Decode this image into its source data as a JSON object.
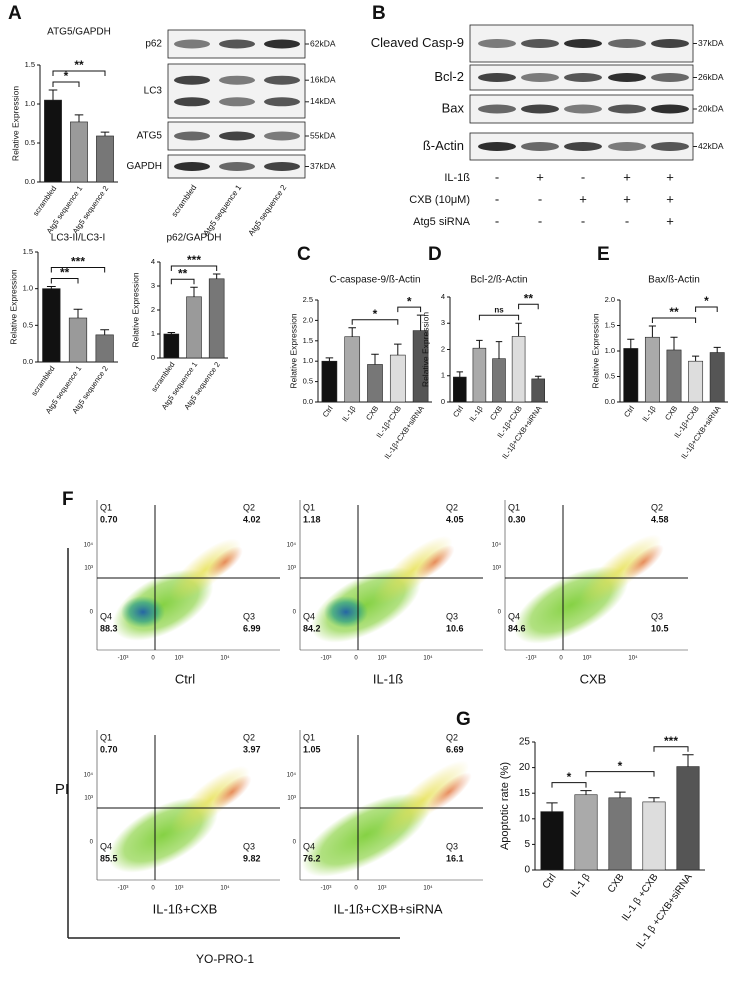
{
  "panel_letters": [
    "A",
    "B",
    "C",
    "D",
    "E",
    "F",
    "G"
  ],
  "chart_data": [
    {
      "type": "bar",
      "title": "ATG5/GAPDH",
      "ylabel": "Relative Expression",
      "categories": [
        "scrambled",
        "Atg5 sequence 1",
        "Atg5 sequence 2"
      ],
      "values": [
        1.05,
        0.77,
        0.59
      ],
      "errors": [
        0.13,
        0.09,
        0.05
      ],
      "colors": [
        "#111111",
        "#9a9a9a",
        "#777777"
      ],
      "ylim": [
        0,
        1.5
      ],
      "yticks": [
        {
          "value": 0,
          "label": "0.0"
        },
        {
          "value": 0.5,
          "label": "0.5"
        },
        {
          "value": 1,
          "label": "1.0"
        },
        {
          "value": 1.5,
          "label": "1.5"
        }
      ],
      "brackets": [
        {
          "from": 0,
          "to": 1,
          "label": "*"
        },
        {
          "from": 0,
          "to": 2,
          "label": "**"
        }
      ]
    },
    {
      "type": "bar",
      "title": "LC3-II/LC3-I",
      "ylabel": "Relative Expression",
      "categories": [
        "scrambled",
        "Atg5 sequence 1",
        "Atg5 sequence 2"
      ],
      "values": [
        1.0,
        0.6,
        0.37
      ],
      "errors": [
        0.03,
        0.12,
        0.07
      ],
      "colors": [
        "#111111",
        "#9a9a9a",
        "#777777"
      ],
      "ylim": [
        0,
        1.5
      ],
      "yticks": [
        {
          "value": 0,
          "label": "0.0"
        },
        {
          "value": 0.5,
          "label": "0.5"
        },
        {
          "value": 1,
          "label": "1.0"
        },
        {
          "value": 1.5,
          "label": "1.5"
        }
      ],
      "brackets": [
        {
          "from": 0,
          "to": 1,
          "label": "**"
        },
        {
          "from": 0,
          "to": 2,
          "label": "***"
        }
      ]
    },
    {
      "type": "bar",
      "title": "p62/GAPDH",
      "ylabel": "Relative Expression",
      "categories": [
        "scrambled",
        "Atg5 sequence 1",
        "Atg5 sequence 2"
      ],
      "values": [
        1.0,
        2.55,
        3.3
      ],
      "errors": [
        0.06,
        0.4,
        0.2
      ],
      "colors": [
        "#111111",
        "#9a9a9a",
        "#777777"
      ],
      "ylim": [
        0,
        4
      ],
      "yticks": [
        0,
        1,
        2,
        3,
        4
      ],
      "brackets": [
        {
          "from": 0,
          "to": 1,
          "label": "**"
        },
        {
          "from": 0,
          "to": 2,
          "label": "***"
        }
      ]
    },
    {
      "type": "bar",
      "title": "C-caspase-9/ß-Actin",
      "ylabel": "Relative Expression",
      "categories": [
        "Ctrl",
        "IL-1β",
        "CXB",
        "IL-1β+CXB",
        "IL-1β+CXB+siRNA"
      ],
      "values": [
        1.0,
        1.6,
        0.92,
        1.15,
        1.75
      ],
      "errors": [
        0.08,
        0.22,
        0.25,
        0.27,
        0.38
      ],
      "colors": [
        "#111111",
        "#aaaaaa",
        "#777777",
        "#dddddd",
        "#555555"
      ],
      "ylim": [
        0,
        2.5
      ],
      "yticks": [
        {
          "value": 0,
          "label": "0.0"
        },
        {
          "value": 0.5,
          "label": "0.5"
        },
        {
          "value": 1,
          "label": "1.0"
        },
        {
          "value": 1.5,
          "label": "1.5"
        },
        {
          "value": 2,
          "label": "2.0"
        },
        {
          "value": 2.5,
          "label": "2.5"
        }
      ],
      "brackets": [
        {
          "from": 1,
          "to": 3,
          "label": "*"
        },
        {
          "from": 3,
          "to": 4,
          "label": "*"
        }
      ]
    },
    {
      "type": "bar",
      "title": "Bcl-2/ß-Actin",
      "ylabel": "Relative Expression",
      "categories": [
        "Ctrl",
        "IL-1β",
        "CXB",
        "IL-1β+CXB",
        "IL-1β+CXB+siRNA"
      ],
      "values": [
        0.95,
        2.05,
        1.65,
        2.5,
        0.88
      ],
      "errors": [
        0.2,
        0.3,
        0.65,
        0.5,
        0.1
      ],
      "colors": [
        "#111111",
        "#aaaaaa",
        "#777777",
        "#dddddd",
        "#555555"
      ],
      "ylim": [
        0,
        4
      ],
      "yticks": [
        0,
        1,
        2,
        3,
        4
      ],
      "brackets": [
        {
          "from": 1,
          "to": 3,
          "label": "ns"
        },
        {
          "from": 3,
          "to": 4,
          "label": "**"
        }
      ]
    },
    {
      "type": "bar",
      "title": "Bax/ß-Actin",
      "ylabel": "Relative Expression",
      "categories": [
        "Ctrl",
        "IL-1β",
        "CXB",
        "IL-1β+CXB",
        "IL-1β+CXB+siRNA"
      ],
      "values": [
        1.05,
        1.27,
        1.02,
        0.8,
        0.97
      ],
      "errors": [
        0.18,
        0.22,
        0.25,
        0.1,
        0.1
      ],
      "colors": [
        "#111111",
        "#aaaaaa",
        "#777777",
        "#dddddd",
        "#555555"
      ],
      "ylim": [
        0,
        2
      ],
      "yticks": [
        {
          "value": 0,
          "label": "0.0"
        },
        {
          "value": 0.5,
          "label": "0.5"
        },
        {
          "value": 1,
          "label": "1.0"
        },
        {
          "value": 1.5,
          "label": "1.5"
        },
        {
          "value": 2,
          "label": "2.0"
        }
      ],
      "brackets": [
        {
          "from": 1,
          "to": 3,
          "label": "**"
        },
        {
          "from": 3,
          "to": 4,
          "label": "*"
        }
      ]
    },
    {
      "type": "bar",
      "ylabel": "Apoptotic rate (%)",
      "categories": [
        "Ctrl",
        "IL-1 β",
        "CXB",
        "IL-1 β +CXB",
        "IL-1 β +CXB+siRNA"
      ],
      "values": [
        11.4,
        14.7,
        14.1,
        13.3,
        20.2
      ],
      "errors": [
        1.7,
        0.8,
        1.1,
        0.8,
        2.3
      ],
      "colors": [
        "#111111",
        "#aaaaaa",
        "#777777",
        "#dddddd",
        "#555555"
      ],
      "ylim": [
        0,
        25
      ],
      "yticks": [
        0,
        5,
        10,
        15,
        20,
        25
      ],
      "brackets": [
        {
          "from": 0,
          "to": 1,
          "label": "*"
        },
        {
          "from": 1,
          "to": 3,
          "label": "*"
        },
        {
          "from": 3,
          "to": 4,
          "label": "***"
        }
      ]
    }
  ],
  "blot_A": {
    "rows": [
      {
        "label": "p62",
        "markers": [
          "62kDA"
        ]
      },
      {
        "label": "LC3",
        "markers": [
          "16kDA",
          "14kDA"
        ]
      },
      {
        "label": "ATG5",
        "markers": [
          "55kDA"
        ]
      },
      {
        "label": "GAPDH",
        "markers": [
          "37kDA"
        ]
      }
    ],
    "lanes": [
      "scrambled",
      "Atg5 sequence 1",
      "Atg5 sequence 2"
    ]
  },
  "blot_B": {
    "rows": [
      {
        "label": "Cleaved Casp-9",
        "markers": [
          "37kDA"
        ]
      },
      {
        "label": "Bcl-2",
        "markers": [
          "26kDA"
        ]
      },
      {
        "label": "Bax",
        "markers": [
          "20kDA"
        ]
      },
      {
        "label": "ß-Actin",
        "markers": [
          "42kDA"
        ]
      }
    ],
    "treatments": [
      {
        "label": "IL-1ß",
        "signs": [
          "-",
          "+",
          "-",
          "+",
          "+"
        ]
      },
      {
        "label": "CXB (10μM)",
        "signs": [
          "-",
          "-",
          "+",
          "+",
          "+"
        ]
      },
      {
        "label": "Atg5 siRNA",
        "signs": [
          "-",
          "-",
          "-",
          "-",
          "+"
        ]
      }
    ]
  },
  "flow": {
    "y_axis_label": "PI",
    "x_axis_label": "YO-PRO-1",
    "yticks": [
      "10⁴",
      "10³",
      "0"
    ],
    "xticks": [
      "-10³",
      "0",
      "10³",
      "10⁴"
    ],
    "panels": [
      {
        "name": "Ctrl",
        "quadrants": [
          [
            "Q1",
            "0.70"
          ],
          [
            "Q2",
            "4.02"
          ],
          [
            "Q4",
            "88.3"
          ],
          [
            "Q3",
            "6.99"
          ]
        ]
      },
      {
        "name": "IL-1ß",
        "quadrants": [
          [
            "Q1",
            "1.18"
          ],
          [
            "Q2",
            "4.05"
          ],
          [
            "Q4",
            "84.2"
          ],
          [
            "Q3",
            "10.6"
          ]
        ]
      },
      {
        "name": "CXB",
        "quadrants": [
          [
            "Q1",
            "0.30"
          ],
          [
            "Q2",
            "4.58"
          ],
          [
            "Q4",
            "84.6"
          ],
          [
            "Q3",
            "10.5"
          ]
        ]
      },
      {
        "name": "IL-1ß+CXB",
        "quadrants": [
          [
            "Q1",
            "0.70"
          ],
          [
            "Q2",
            "3.97"
          ],
          [
            "Q4",
            "85.5"
          ],
          [
            "Q3",
            "9.82"
          ]
        ]
      },
      {
        "name": "IL-1ß+CXB+siRNA",
        "quadrants": [
          [
            "Q1",
            "1.05"
          ],
          [
            "Q2",
            "6.69"
          ],
          [
            "Q4",
            "76.2"
          ],
          [
            "Q3",
            "16.1"
          ]
        ]
      }
    ]
  }
}
